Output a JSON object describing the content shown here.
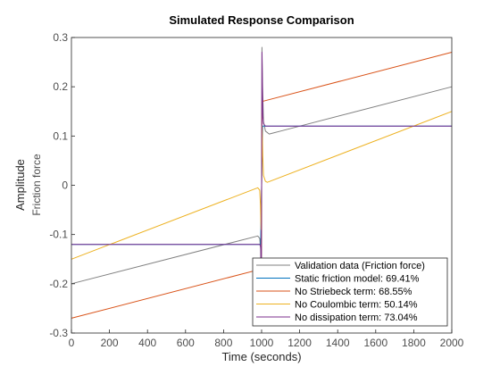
{
  "chart_data": {
    "type": "line",
    "title": "Simulated Response Comparison",
    "xlabel": "Time (seconds)",
    "ylabel": "Amplitude",
    "ylabel_sub": "Friction force",
    "xlim": [
      0,
      2000
    ],
    "ylim": [
      -0.3,
      0.3
    ],
    "xticks": [
      0,
      200,
      400,
      600,
      800,
      1000,
      1200,
      1400,
      1600,
      1800,
      2000
    ],
    "yticks": [
      -0.3,
      -0.2,
      -0.1,
      0,
      0.1,
      0.2,
      0.3
    ],
    "xtick_labels": [
      "0",
      "200",
      "400",
      "600",
      "800",
      "1000",
      "1200",
      "1400",
      "1600",
      "1800",
      "2000"
    ],
    "ytick_labels": [
      "-0.3",
      "-0.2",
      "-0.1",
      "0",
      "0.1",
      "0.2",
      "0.3"
    ],
    "grid": false,
    "legend_position": "bottom-right",
    "series": [
      {
        "name": "Validation data (Friction force)",
        "color": "#808080",
        "x": [
          0,
          980,
          990,
          995,
          998,
          1000,
          1002,
          1005,
          1010,
          1020,
          1040,
          1060,
          1100,
          2000
        ],
        "y": [
          -0.2,
          -0.103,
          -0.108,
          -0.13,
          -0.27,
          -0.1,
          0.28,
          0.2,
          0.13,
          0.11,
          0.104,
          0.106,
          0.11,
          0.2
        ]
      },
      {
        "name": "Static friction model: 69.41%",
        "color": "#0072bd",
        "x": [
          0,
          995,
          1000,
          1005,
          2000
        ],
        "y": [
          -0.12,
          -0.12,
          0,
          0.12,
          0.12
        ]
      },
      {
        "name": "No Striebeck term: 68.55%",
        "color": "#d95319",
        "x": [
          0,
          998,
          1000,
          1002,
          2000
        ],
        "y": [
          -0.27,
          -0.17,
          0,
          0.17,
          0.27
        ]
      },
      {
        "name": "No Coulombic term: 50.14%",
        "color": "#edb120",
        "x": [
          0,
          980,
          990,
          994,
          997,
          1000,
          1003,
          1006,
          1010,
          1020,
          1030,
          2000
        ],
        "y": [
          -0.15,
          -0.005,
          -0.01,
          -0.04,
          -0.09,
          0,
          0.12,
          0.06,
          0.02,
          0.008,
          0.006,
          0.15
        ]
      },
      {
        "name": "No dissipation term: 73.04%",
        "color": "#7e2f8e",
        "x": [
          0,
          990,
          996,
          998,
          1000,
          1002,
          1004,
          1006,
          1010,
          1020,
          2000
        ],
        "y": [
          -0.12,
          -0.12,
          -0.125,
          -0.2,
          0,
          0.27,
          0.2,
          0.14,
          0.125,
          0.12,
          0.12
        ]
      }
    ]
  }
}
